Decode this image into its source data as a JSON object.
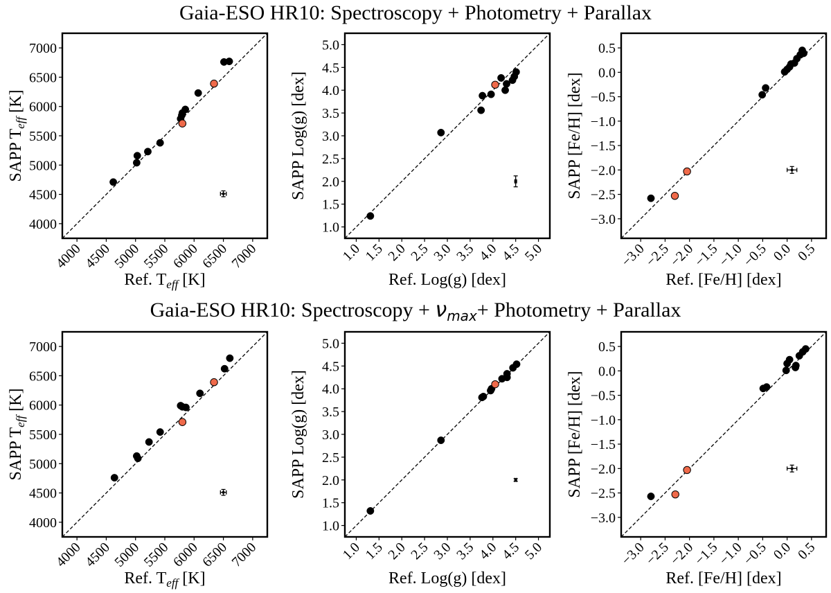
{
  "rows": [
    {
      "title_parts": [
        "Gaia-ESO HR10: Spectroscopy + Photometry + Parallax"
      ]
    },
    {
      "title_parts": [
        "Gaia-ESO HR10: Spectroscopy + ",
        "ν",
        "max",
        "+ Photometry + Parallax"
      ]
    }
  ],
  "colors": {
    "points": "#000000",
    "highlight_points": "#ef6a4a",
    "one_to_one_line": "#000000"
  },
  "chart_data": [
    {
      "type": "scatter",
      "row": 0,
      "col": 0,
      "ylabel_parts": [
        "SAPP T",
        "eff",
        " [K]"
      ],
      "xlabel_parts": [
        "Ref. T",
        "eff",
        " [K]"
      ],
      "xlim": [
        3750,
        7250
      ],
      "ylim": [
        3750,
        7250
      ],
      "xticks": [
        4000,
        4500,
        5000,
        5500,
        6000,
        6500,
        7000
      ],
      "yticks": [
        4000,
        4500,
        5000,
        5500,
        6000,
        6500,
        7000
      ],
      "xtick_labels": [
        "4000",
        "4500",
        "5000",
        "5500",
        "6000",
        "6500",
        "7000"
      ],
      "ytick_labels": [
        "4000",
        "4500",
        "5000",
        "5500",
        "6000",
        "6500",
        "7000"
      ],
      "xtick_rotation": -45,
      "one_to_one": true,
      "series": [
        {
          "role": "stars",
          "points": [
            [
              4620,
              4710
            ],
            [
              5020,
              5040
            ],
            [
              5030,
              5160
            ],
            [
              5210,
              5230
            ],
            [
              5420,
              5380
            ],
            [
              5770,
              5790
            ],
            [
              5790,
              5850
            ],
            [
              5800,
              5890
            ],
            [
              5850,
              5950
            ],
            [
              6070,
              6230
            ],
            [
              6510,
              6760
            ],
            [
              6600,
              6770
            ]
          ]
        },
        {
          "role": "highlighted stars",
          "points": [
            [
              5800,
              5710
            ],
            [
              6340,
              6390
            ]
          ]
        }
      ],
      "error_bar": {
        "x": 6500,
        "y": 4510,
        "xerr": 50,
        "yerr": 50
      }
    },
    {
      "type": "scatter",
      "row": 0,
      "col": 1,
      "ylabel_parts": [
        "SAPP Log(g) [dex]"
      ],
      "xlabel_parts": [
        "Ref. Log(g) [dex]"
      ],
      "xlim": [
        0.75,
        5.25
      ],
      "ylim": [
        0.75,
        5.25
      ],
      "xticks": [
        1.0,
        1.5,
        2.0,
        2.5,
        3.0,
        3.5,
        4.0,
        4.5,
        5.0
      ],
      "yticks": [
        1.0,
        1.5,
        2.0,
        2.5,
        3.0,
        3.5,
        4.0,
        4.5,
        5.0
      ],
      "xtick_labels": [
        "1.0",
        "1.5",
        "2.0",
        "2.5",
        "3.0",
        "3.5",
        "4.0",
        "4.5",
        "5.0"
      ],
      "ytick_labels": [
        "1.0",
        "1.5",
        "2.0",
        "2.5",
        "3.0",
        "3.5",
        "4.0",
        "4.5",
        "5.0"
      ],
      "xtick_rotation": -45,
      "one_to_one": true,
      "series": [
        {
          "role": "stars",
          "points": [
            [
              1.31,
              1.24
            ],
            [
              2.86,
              3.07
            ],
            [
              3.74,
              3.56
            ],
            [
              3.77,
              3.88
            ],
            [
              3.96,
              3.91
            ],
            [
              4.18,
              4.27
            ],
            [
              4.27,
              4.0
            ],
            [
              4.3,
              4.14
            ],
            [
              4.43,
              4.22
            ],
            [
              4.47,
              4.3
            ],
            [
              4.51,
              4.4
            ]
          ]
        },
        {
          "role": "highlighted stars",
          "points": [
            [
              4.05,
              4.12
            ]
          ]
        }
      ],
      "error_bar": {
        "x": 4.5,
        "y": 2.0,
        "xerr": 0.02,
        "yerr": 0.12
      }
    },
    {
      "type": "scatter",
      "row": 0,
      "col": 2,
      "ylabel_parts": [
        "SAPP [Fe/H] [dex]"
      ],
      "xlabel_parts": [
        "Ref. [Fe/H] [dex]"
      ],
      "xlim": [
        -3.4,
        0.8
      ],
      "ylim": [
        -3.4,
        0.8
      ],
      "xticks": [
        -3.0,
        -2.5,
        -2.0,
        -1.5,
        -1.0,
        -0.5,
        0.0,
        0.5
      ],
      "yticks": [
        -3.0,
        -2.5,
        -2.0,
        -1.5,
        -1.0,
        -0.5,
        0.0,
        0.5
      ],
      "xtick_labels": [
        "−3.0",
        "−2.5",
        "−2.0",
        "−1.5",
        "−1.0",
        "−0.5",
        "0.0",
        "0.5"
      ],
      "ytick_labels": [
        "−3.0",
        "−2.5",
        "−2.0",
        "−1.5",
        "−1.0",
        "−0.5",
        "0.0",
        "0.5"
      ],
      "xtick_rotation": -45,
      "one_to_one": true,
      "series": [
        {
          "role": "stars",
          "points": [
            [
              -2.79,
              -2.58
            ],
            [
              -0.51,
              -0.46
            ],
            [
              -0.44,
              -0.32
            ],
            [
              -0.05,
              0.01
            ],
            [
              0.0,
              0.06
            ],
            [
              0.05,
              0.11
            ],
            [
              0.08,
              0.17
            ],
            [
              0.15,
              0.19
            ],
            [
              0.2,
              0.28
            ],
            [
              0.27,
              0.36
            ],
            [
              0.31,
              0.45
            ],
            [
              0.34,
              0.39
            ]
          ]
        },
        {
          "role": "highlighted stars",
          "points": [
            [
              -2.3,
              -2.53
            ],
            [
              -2.05,
              -2.03
            ]
          ]
        }
      ],
      "error_bar": {
        "x": 0.1,
        "y": -2.0,
        "xerr": 0.1,
        "yerr": 0.07
      }
    },
    {
      "type": "scatter",
      "row": 1,
      "col": 0,
      "ylabel_parts": [
        "SAPP T",
        "eff",
        " [K]"
      ],
      "xlabel_parts": [
        "Ref. T",
        "eff",
        " [K]"
      ],
      "xlim": [
        3750,
        7250
      ],
      "ylim": [
        3750,
        7250
      ],
      "xticks": [
        4000,
        4500,
        5000,
        5500,
        6000,
        6500,
        7000
      ],
      "yticks": [
        4000,
        4500,
        5000,
        5500,
        6000,
        6500,
        7000
      ],
      "xtick_labels": [
        "4000",
        "4500",
        "5000",
        "5500",
        "6000",
        "6500",
        "7000"
      ],
      "ytick_labels": [
        "4000",
        "4500",
        "5000",
        "5500",
        "6000",
        "6500",
        "7000"
      ],
      "xtick_rotation": -45,
      "one_to_one": true,
      "series": [
        {
          "role": "stars",
          "points": [
            [
              4640,
              4760
            ],
            [
              5020,
              5130
            ],
            [
              5040,
              5090
            ],
            [
              5230,
              5370
            ],
            [
              5420,
              5540
            ],
            [
              5770,
              5990
            ],
            [
              5800,
              5970
            ],
            [
              5860,
              5960
            ],
            [
              6100,
              6200
            ],
            [
              6520,
              6620
            ],
            [
              6610,
              6800
            ]
          ]
        },
        {
          "role": "highlighted stars",
          "points": [
            [
              5800,
              5710
            ],
            [
              6340,
              6390
            ]
          ]
        }
      ],
      "error_bar": {
        "x": 6500,
        "y": 4510,
        "xerr": 50,
        "yerr": 50
      }
    },
    {
      "type": "scatter",
      "row": 1,
      "col": 1,
      "ylabel_parts": [
        "SAPP Log(g) [dex]"
      ],
      "xlabel_parts": [
        "Ref. Log(g) [dex]"
      ],
      "xlim": [
        0.75,
        5.25
      ],
      "ylim": [
        0.75,
        5.25
      ],
      "xticks": [
        1.0,
        1.5,
        2.0,
        2.5,
        3.0,
        3.5,
        4.0,
        4.5,
        5.0
      ],
      "yticks": [
        1.0,
        1.5,
        2.0,
        2.5,
        3.0,
        3.5,
        4.0,
        4.5,
        5.0
      ],
      "xtick_labels": [
        "1.0",
        "1.5",
        "2.0",
        "2.5",
        "3.0",
        "3.5",
        "4.0",
        "4.5",
        "5.0"
      ],
      "ytick_labels": [
        "1.0",
        "1.5",
        "2.0",
        "2.5",
        "3.0",
        "3.5",
        "4.0",
        "4.5",
        "5.0"
      ],
      "xtick_rotation": -45,
      "one_to_one": true,
      "series": [
        {
          "role": "stars",
          "points": [
            [
              1.31,
              1.32
            ],
            [
              2.86,
              2.87
            ],
            [
              3.76,
              3.81
            ],
            [
              3.79,
              3.83
            ],
            [
              3.95,
              3.96
            ],
            [
              3.97,
              4.0
            ],
            [
              4.2,
              4.22
            ],
            [
              4.31,
              4.25
            ],
            [
              4.31,
              4.33
            ],
            [
              4.44,
              4.46
            ],
            [
              4.52,
              4.54
            ]
          ]
        },
        {
          "role": "highlighted stars",
          "points": [
            [
              4.05,
              4.1
            ]
          ]
        }
      ],
      "error_bar": {
        "x": 4.5,
        "y": 2.0,
        "xerr": 0.02,
        "yerr": 0.03
      }
    },
    {
      "type": "scatter",
      "row": 1,
      "col": 2,
      "ylabel_parts": [
        "SAPP [Fe/H] [dex]"
      ],
      "xlabel_parts": [
        "Ref. [Fe/H] [dex]"
      ],
      "xlim": [
        -3.4,
        0.8
      ],
      "ylim": [
        -3.4,
        0.8
      ],
      "xticks": [
        -3.0,
        -2.5,
        -2.0,
        -1.5,
        -1.0,
        -0.5,
        0.0,
        0.5
      ],
      "yticks": [
        -3.0,
        -2.5,
        -2.0,
        -1.5,
        -1.0,
        -0.5,
        0.0,
        0.5
      ],
      "xtick_labels": [
        "−3.0",
        "−2.5",
        "−2.0",
        "−1.5",
        "−1.0",
        "−0.5",
        "0.0",
        "0.5"
      ],
      "ytick_labels": [
        "−3.0",
        "−2.5",
        "−2.0",
        "−1.5",
        "−1.0",
        "−0.5",
        "0.0",
        "0.5"
      ],
      "xtick_rotation": -45,
      "one_to_one": true,
      "series": [
        {
          "role": "stars",
          "points": [
            [
              -2.79,
              -2.57
            ],
            [
              -0.49,
              -0.36
            ],
            [
              -0.42,
              -0.33
            ],
            [
              -0.02,
              0.01
            ],
            [
              0.0,
              0.15
            ],
            [
              0.05,
              0.23
            ],
            [
              0.17,
              0.07
            ],
            [
              0.18,
              0.11
            ],
            [
              0.25,
              0.31
            ],
            [
              0.32,
              0.39
            ],
            [
              0.38,
              0.45
            ]
          ]
        },
        {
          "role": "highlighted stars",
          "points": [
            [
              -2.29,
              -2.53
            ],
            [
              -2.05,
              -2.03
            ]
          ]
        }
      ],
      "error_bar": {
        "x": 0.1,
        "y": -2.0,
        "xerr": 0.1,
        "yerr": 0.07
      }
    }
  ]
}
